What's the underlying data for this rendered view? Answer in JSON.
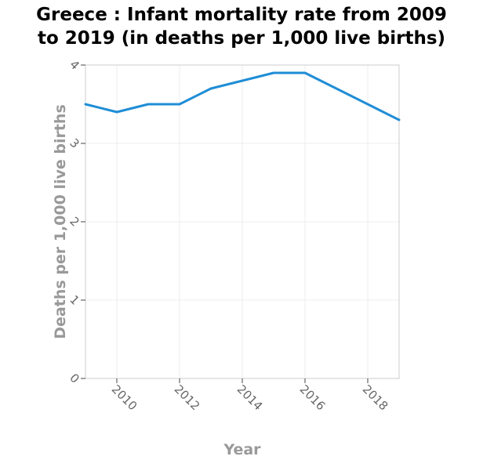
{
  "chart_data": {
    "type": "line",
    "title_line1": "Greece : Infant mortality rate from 2009",
    "title_line2": "to 2019 (in deaths per 1,000 live births)",
    "xlabel": "Year",
    "ylabel": "Deaths per 1,000 live births",
    "xlim": [
      2009,
      2019
    ],
    "ylim": [
      0,
      4
    ],
    "xticks": [
      2010,
      2012,
      2014,
      2016,
      2018
    ],
    "yticks": [
      0,
      1,
      2,
      3,
      4
    ],
    "grid": true,
    "series": [
      {
        "color": "#1f8dd6",
        "x": [
          2009,
          2010,
          2011,
          2012,
          2013,
          2014,
          2015,
          2016,
          2017,
          2018,
          2019
        ],
        "values": [
          3.5,
          3.4,
          3.5,
          3.5,
          3.7,
          3.8,
          3.9,
          3.9,
          3.7,
          3.5,
          3.3
        ]
      }
    ]
  }
}
